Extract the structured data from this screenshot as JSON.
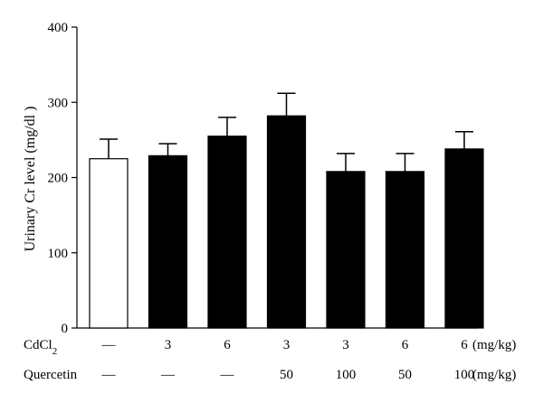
{
  "chart_data": {
    "type": "bar",
    "ylabel": "Urinary Cr level (mg/dl )",
    "ylim": [
      0,
      400
    ],
    "yticks": [
      0,
      100,
      200,
      300,
      400
    ],
    "grid": false,
    "bars": [
      {
        "value": 225,
        "error": 26,
        "fill": "white"
      },
      {
        "value": 229,
        "error": 16,
        "fill": "black"
      },
      {
        "value": 255,
        "error": 25,
        "fill": "black"
      },
      {
        "value": 282,
        "error": 30,
        "fill": "black"
      },
      {
        "value": 208,
        "error": 24,
        "fill": "black"
      },
      {
        "value": 208,
        "error": 24,
        "fill": "black"
      },
      {
        "value": 238,
        "error": 23,
        "fill": "black"
      }
    ],
    "rows": [
      {
        "label": "CdCl",
        "subscript": "2",
        "values": [
          "—",
          "3",
          "6",
          "3",
          "3",
          "6",
          "6"
        ],
        "unit": "(mg/kg)"
      },
      {
        "label": "Quercetin",
        "subscript": "",
        "values": [
          "—",
          "—",
          "—",
          "50",
          "100",
          "50",
          "100"
        ],
        "unit": "(mg/kg)"
      }
    ],
    "colors": {
      "bar_filled": "#000000",
      "bar_empty": "#ffffff",
      "axis": "#000000"
    }
  }
}
